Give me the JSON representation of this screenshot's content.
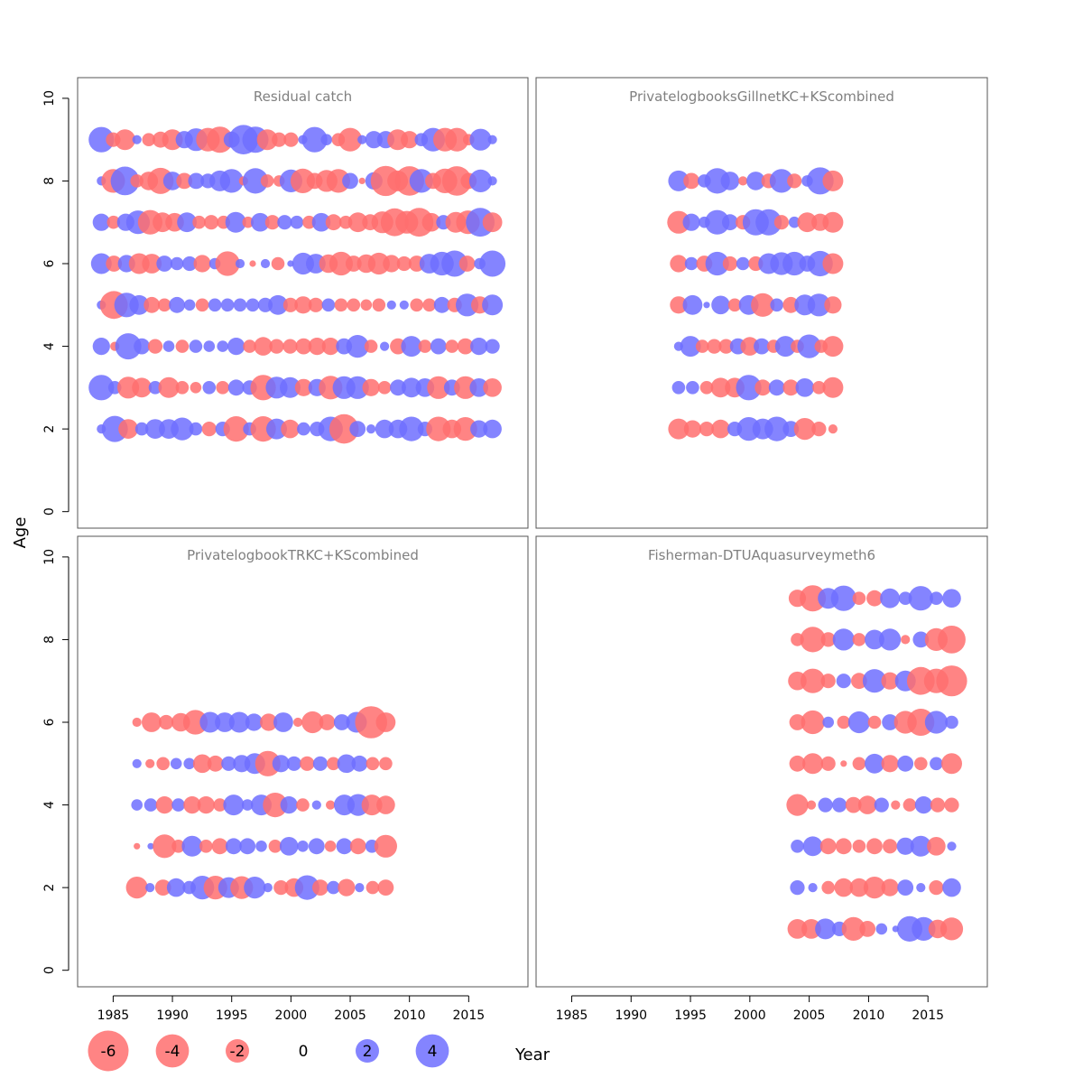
{
  "chart_data": {
    "type": "scatter",
    "subtype": "bubble-residual-plot",
    "xlabel": "Year",
    "ylabel": "Age",
    "xticks": [
      1985,
      1990,
      1995,
      2000,
      2005,
      2010,
      2015
    ],
    "yticks": [
      0,
      2,
      4,
      6,
      8,
      10
    ],
    "xlim": [
      1982,
      2020
    ],
    "ylim": [
      -0.4,
      10.5
    ],
    "colors": {
      "positive": "#6e6eff",
      "negative": "#ff6e6e"
    },
    "legend": {
      "position": "bottom",
      "values": [
        -6,
        -4,
        -2,
        0,
        2,
        4
      ],
      "labels": [
        "-6",
        "-4",
        "-2",
        "0",
        "2",
        "4"
      ]
    },
    "panels": [
      {
        "title": "Residual catch",
        "ages": [
          2,
          3,
          4,
          5,
          6,
          7,
          8,
          9
        ],
        "years": [
          1984,
          2017
        ],
        "rows": {
          "9": [
            1.5,
            -0.5,
            -1,
            0.2,
            -0.4,
            -0.6,
            -1,
            0.7,
            1.2,
            -1.3,
            -1.6,
            0.6,
            2,
            1.6,
            -1,
            -0.5,
            -0.5,
            0.2,
            1.5,
            0.3,
            -0.4,
            -1.3,
            0.2,
            0.7,
            0.7,
            -1,
            -0.7,
            0.4,
            1.3,
            -1.3,
            -1.3,
            -0.3,
            1.1,
            0.2
          ],
          "8": [
            0.2,
            -1.3,
            1.9,
            -0.4,
            -0.8,
            -1.6,
            0.8,
            -0.6,
            0.6,
            0.5,
            1,
            1.3,
            -0.2,
            1.5,
            -0.4,
            -0.3,
            1.2,
            -1.4,
            -0.6,
            -1.1,
            -1.3,
            0.6,
            -0.1,
            0.7,
            -2.1,
            -1,
            -2,
            1.3,
            -0.6,
            -1.4,
            -2,
            -0.6,
            1.2,
            0.2
          ],
          "7": [
            0.7,
            -0.4,
            0.7,
            1.3,
            -1.4,
            -0.9,
            -0.8,
            0.9,
            -0.4,
            -0.5,
            -0.4,
            1,
            -0.3,
            0.8,
            -0.5,
            0.5,
            0.4,
            -0.4,
            0.8,
            -0.6,
            -0.4,
            -0.9,
            -0.6,
            -1.1,
            -1.8,
            -1.2,
            -1.9,
            -0.8,
            0.5,
            -1,
            -1.3,
            1.9,
            -0.9
          ],
          "6": [
            1,
            -0.6,
            0.7,
            -1,
            -0.9,
            0.6,
            0.4,
            0.5,
            -0.7,
            0.3,
            -1.4,
            0.2,
            -0.1,
            0.2,
            -0.4,
            0.1,
            1.1,
            0.9,
            -0.8,
            -1.3,
            -0.6,
            -0.8,
            -1.1,
            -0.7,
            -0.5,
            -0.6,
            0.9,
            1.3,
            1.6,
            -0.6,
            0.3,
            1.6
          ],
          "5": [
            0.2,
            -1.8,
            1.4,
            0.9,
            -0.6,
            -0.4,
            0.6,
            0.3,
            -0.4,
            0.4,
            0.4,
            0.4,
            0.4,
            0.5,
            0.9,
            -0.5,
            -0.7,
            -0.5,
            0.4,
            -0.4,
            -0.4,
            -0.3,
            -0.4,
            0.2,
            0.2,
            -0.4,
            -0.4,
            0.6,
            -0.5,
            1.2,
            -0.7,
            1
          ],
          "4": [
            0.7,
            -0.2,
            1.6,
            0.6,
            -0.5,
            0.3,
            -0.4,
            0.4,
            0.3,
            0.3,
            0.7,
            -0.4,
            -0.8,
            -0.5,
            -0.5,
            -0.6,
            -0.7,
            -0.7,
            0.6,
            1.2,
            -0.4,
            0.2,
            -0.6,
            1,
            -0.4,
            0.6,
            -0.4,
            -0.6,
            0.7,
            0.5
          ],
          "3": [
            1.5,
            0.4,
            -1.1,
            -0.9,
            0.4,
            -1,
            -0.4,
            -0.3,
            0.4,
            -0.4,
            0.6,
            0.5,
            -1.5,
            1.1,
            1,
            -0.7,
            0.7,
            -1.3,
            1.2,
            1.2,
            -0.7,
            -0.4,
            0.6,
            0.9,
            0.8,
            -1.2,
            0.6,
            -1.2,
            0.8,
            -0.8
          ],
          "2": [
            0.2,
            1.6,
            -0.9,
            0.4,
            0.9,
            0.9,
            1.2,
            0.4,
            -0.5,
            0.5,
            -1.5,
            0.4,
            -1.5,
            1,
            -0.8,
            0.4,
            0.5,
            1.4,
            -2,
            0.6,
            0.2,
            0.8,
            0.8,
            1.4,
            0.5,
            -1.4,
            -0.8,
            -1.3,
            0.7,
            0.8
          ]
        }
      },
      {
        "title": "PrivatelogbooksGillnetKC+KScombined",
        "ages": [
          2,
          3,
          4,
          5,
          6,
          7,
          8
        ],
        "years": [
          1994,
          2007
        ],
        "rows": {
          "8": [
            1,
            -0.6,
            0.4,
            1.5,
            0.8,
            -0.2,
            0.8,
            -0.5,
            1.3,
            -0.5,
            0.3,
            1.7,
            -1
          ],
          "7": [
            -1.2,
            0.7,
            0.3,
            1.4,
            0.6,
            -0.5,
            1.6,
            1.6,
            -0.5,
            0.3,
            -0.9,
            -0.7,
            -1
          ],
          "6": [
            -0.7,
            0.4,
            -0.6,
            1.3,
            -0.5,
            0.4,
            -0.5,
            1,
            1.2,
            1.3,
            0.6,
            1.5,
            -1
          ],
          "5": [
            -0.7,
            0.9,
            0.1,
            0.8,
            -0.4,
            0.9,
            -1.3,
            0.4,
            -0.6,
            1,
            1.2,
            -0.7
          ],
          "4": [
            0.2,
            1,
            -0.4,
            -0.5,
            -0.5,
            0.6,
            -0.8,
            0.6,
            -0.4,
            1,
            -0.4,
            1.3,
            -0.4,
            -1
          ],
          "3": [
            0.4,
            0.4,
            -0.4,
            -0.9,
            -0.9,
            1.5,
            -0.6,
            0.6,
            -0.6,
            0.8,
            -0.4,
            -1
          ],
          "2": [
            -1,
            -0.7,
            -0.5,
            -0.8,
            0.5,
            1.3,
            1,
            1.4,
            0.6,
            -1.1,
            -0.5,
            -0.2
          ]
        }
      },
      {
        "title": "PrivatelogbookTRKC+KScombined",
        "ages": [
          2,
          3,
          4,
          5,
          6
        ],
        "years": [
          1987,
          2008
        ],
        "rows": {
          "6": [
            -0.2,
            -0.9,
            -0.5,
            -0.8,
            -1.4,
            1,
            0.9,
            1,
            0.7,
            -0.7,
            0.9,
            -0.2,
            -1.1,
            -0.6,
            0.6,
            1,
            -2.4,
            -0.9
          ],
          "5": [
            0.2,
            -0.2,
            -0.4,
            0.3,
            0.3,
            -0.8,
            -0.6,
            0.5,
            0.7,
            1,
            -1.5,
            0.7,
            0.5,
            -0.5,
            0.5,
            -0.4,
            0.8,
            0.6,
            -0.4,
            -0.4
          ],
          "4": [
            0.3,
            0.4,
            -0.7,
            0.4,
            -0.7,
            -0.7,
            -0.4,
            1,
            0.3,
            1,
            -1.4,
            0.7,
            -0.4,
            0.2,
            -0.2,
            1,
            1.1,
            -1,
            -0.8
          ],
          "3": [
            -0.1,
            0.1,
            -1.3,
            -0.4,
            1,
            -0.4,
            -0.6,
            0.6,
            0.6,
            0.3,
            -0.4,
            0.8,
            0.3,
            0.6,
            -0.3,
            0.6,
            -0.6,
            0.4,
            -1.2
          ],
          "2": [
            -1.1,
            0.2,
            -0.6,
            0.8,
            0.4,
            1.3,
            -1.3,
            1,
            -1.2,
            1.1,
            0.2,
            -0.5,
            -0.8,
            1.4,
            -0.6,
            0.4,
            -0.7,
            0.2,
            -0.4,
            -0.6
          ]
        }
      },
      {
        "title": "Fisherman-DTUAquasurveymeth6",
        "ages": [
          1,
          2,
          3,
          4,
          5,
          6,
          7,
          8,
          9
        ],
        "years": [
          2004,
          2017
        ],
        "rows": {
          "9": [
            -0.7,
            -1.6,
            1,
            1.5,
            -0.4,
            -0.6,
            0.9,
            0.4,
            1.4,
            0.4,
            0.8
          ],
          "8": [
            -0.4,
            -1.5,
            -0.5,
            1.1,
            -0.4,
            0.9,
            1.1,
            -0.2,
            0.6,
            -1.2,
            -1.8
          ],
          "7": [
            -0.8,
            -1.4,
            -0.5,
            0.5,
            -0.6,
            1.3,
            -0.7,
            1,
            -1.8,
            -1.4,
            -2.2
          ],
          "6": [
            -0.6,
            -1.3,
            0.3,
            -0.4,
            1.1,
            -0.4,
            0.6,
            -1.2,
            -1.7,
            1.2,
            0.4
          ],
          "5": [
            -0.6,
            -1,
            -0.5,
            -0.1,
            -0.4,
            0.9,
            -0.7,
            0.6,
            -0.4,
            0.4,
            -1
          ],
          "4": [
            -1.1,
            -0.2,
            0.5,
            0.5,
            -0.6,
            -0.8,
            0.5,
            -0.2,
            -0.4,
            0.7,
            -0.5,
            -0.5
          ],
          "3": [
            0.4,
            0.9,
            -0.6,
            -0.6,
            -0.4,
            -0.6,
            -0.5,
            0.7,
            1,
            -0.8,
            0.2
          ],
          "2": [
            0.5,
            0.2,
            -0.4,
            -0.8,
            -0.8,
            -1.1,
            -0.7,
            0.6,
            0.2,
            -0.5,
            0.8
          ],
          "1": [
            -0.9,
            -0.9,
            1,
            0.5,
            -1.3,
            -0.6,
            0.3,
            0.1,
            1.5,
            1.3,
            -0.8,
            -1.2
          ]
        }
      }
    ]
  }
}
